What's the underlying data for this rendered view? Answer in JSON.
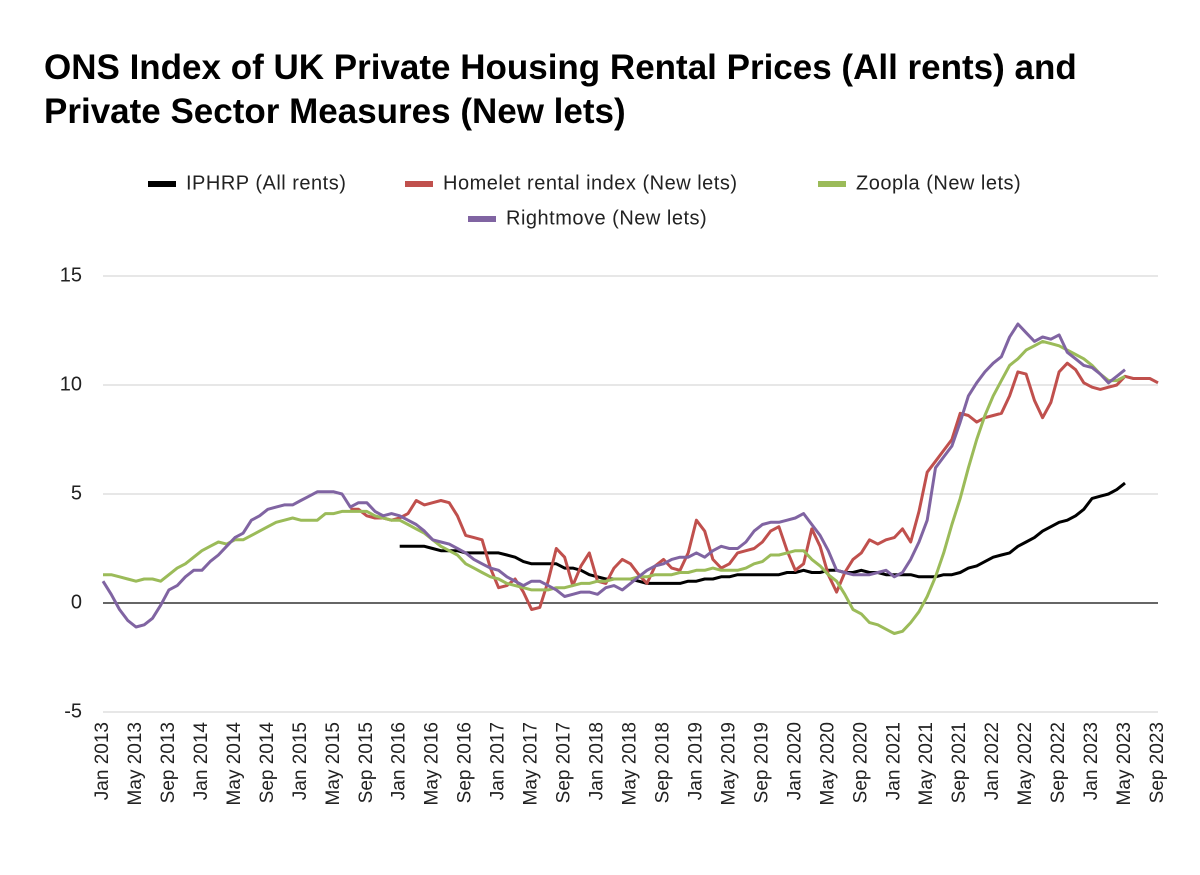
{
  "chart_data": {
    "type": "line",
    "title": "ONS Index of UK Private Housing Rental Prices (All rents) and Private Sector Measures (New lets)",
    "categories": [
      "Jan 2013",
      null,
      null,
      null,
      "May 2013",
      null,
      null,
      null,
      "Sep 2013",
      null,
      null,
      null,
      "Jan 2014",
      null,
      null,
      null,
      "May 2014",
      null,
      null,
      null,
      "Sep 2014",
      null,
      null,
      null,
      "Jan 2015",
      null,
      null,
      null,
      "May 2015",
      null,
      null,
      null,
      "Sep 2015",
      null,
      null,
      null,
      "Jan 2016",
      null,
      null,
      null,
      "May 2016",
      null,
      null,
      null,
      "Sep 2016",
      null,
      null,
      null,
      "Jan 2017",
      null,
      null,
      null,
      "May 2017",
      null,
      null,
      null,
      "Sep 2017",
      null,
      null,
      null,
      "Jan 2018",
      null,
      null,
      null,
      "May 2018",
      null,
      null,
      null,
      "Sep 2018",
      null,
      null,
      null,
      "Jan 2019",
      null,
      null,
      null,
      "May 2019",
      null,
      null,
      null,
      "Sep 2019",
      null,
      null,
      null,
      "Jan 2020",
      null,
      null,
      null,
      "May 2020",
      null,
      null,
      null,
      "Sep 2020",
      null,
      null,
      null,
      "Jan 2021",
      null,
      null,
      null,
      "May 2021",
      null,
      null,
      null,
      "Sep 2021",
      null,
      null,
      null,
      "Jan 2022",
      null,
      null,
      null,
      "May 2022",
      null,
      null,
      null,
      "Sep 2022",
      null,
      null,
      null,
      "Jan 2023",
      null,
      null,
      null,
      "May 2023",
      null,
      null,
      null,
      "Sep 2023"
    ],
    "series": [
      {
        "name": "IPHRP (All rents)",
        "color": "#000000",
        "values": [
          null,
          null,
          null,
          null,
          null,
          null,
          null,
          null,
          null,
          null,
          null,
          null,
          null,
          null,
          null,
          null,
          null,
          null,
          null,
          null,
          null,
          null,
          null,
          null,
          null,
          null,
          null,
          null,
          null,
          null,
          null,
          null,
          null,
          null,
          null,
          null,
          2.6,
          2.6,
          2.6,
          2.6,
          2.5,
          2.4,
          2.4,
          2.4,
          2.3,
          2.3,
          2.3,
          2.3,
          2.3,
          2.2,
          2.1,
          1.9,
          1.8,
          1.8,
          1.8,
          1.8,
          1.6,
          1.6,
          1.5,
          1.3,
          1.2,
          1.1,
          1.1,
          1.1,
          1.1,
          1.0,
          0.9,
          0.9,
          0.9,
          0.9,
          0.9,
          1.0,
          1.0,
          1.1,
          1.1,
          1.2,
          1.2,
          1.3,
          1.3,
          1.3,
          1.3,
          1.3,
          1.3,
          1.4,
          1.4,
          1.5,
          1.4,
          1.4,
          1.5,
          1.5,
          1.4,
          1.4,
          1.5,
          1.4,
          1.4,
          1.3,
          1.3,
          1.3,
          1.3,
          1.2,
          1.2,
          1.2,
          1.3,
          1.3,
          1.4,
          1.6,
          1.7,
          1.9,
          2.1,
          2.2,
          2.3,
          2.6,
          2.8,
          3.0,
          3.3,
          3.5,
          3.7,
          3.8,
          4.0,
          4.3,
          4.8,
          4.9,
          5.0,
          5.2,
          5.5,
          null,
          null,
          null,
          null
        ]
      },
      {
        "name": "Homelet rental index (New lets)",
        "color": "#c0504d",
        "values": [
          null,
          null,
          null,
          null,
          null,
          null,
          null,
          null,
          null,
          null,
          null,
          null,
          null,
          null,
          null,
          null,
          null,
          null,
          null,
          null,
          null,
          null,
          null,
          null,
          null,
          null,
          null,
          null,
          null,
          null,
          4.3,
          4.3,
          4.0,
          3.9,
          3.9,
          3.8,
          3.9,
          4.1,
          4.7,
          4.5,
          4.6,
          4.7,
          4.6,
          4.0,
          3.1,
          3.0,
          2.9,
          1.6,
          0.7,
          0.8,
          1.1,
          0.5,
          -0.3,
          -0.2,
          1.0,
          2.5,
          2.1,
          0.8,
          1.7,
          2.3,
          1.0,
          0.9,
          1.6,
          2.0,
          1.8,
          1.3,
          0.9,
          1.7,
          2.0,
          1.6,
          1.5,
          2.3,
          3.8,
          3.3,
          2.0,
          1.6,
          1.8,
          2.3,
          2.4,
          2.5,
          2.8,
          3.3,
          3.5,
          2.4,
          1.5,
          1.8,
          3.4,
          2.6,
          1.3,
          0.5,
          1.4,
          2.0,
          2.3,
          2.9,
          2.7,
          2.9,
          3.0,
          3.4,
          2.8,
          4.2,
          6.0,
          6.5,
          7.0,
          7.5,
          8.7,
          8.6,
          8.3,
          8.5,
          8.6,
          8.7,
          9.5,
          10.6,
          10.5,
          9.3,
          8.5,
          9.2,
          10.6,
          11.0,
          10.7,
          10.1,
          9.9,
          9.8,
          9.9,
          10.0,
          10.4,
          10.3,
          10.3,
          10.3,
          10.1
        ]
      },
      {
        "name": "Zoopla (New lets)",
        "color": "#9bbb59",
        "values": [
          1.3,
          1.3,
          1.2,
          1.1,
          1.0,
          1.1,
          1.1,
          1.0,
          1.3,
          1.6,
          1.8,
          2.1,
          2.4,
          2.6,
          2.8,
          2.7,
          2.9,
          2.9,
          3.1,
          3.3,
          3.5,
          3.7,
          3.8,
          3.9,
          3.8,
          3.8,
          3.8,
          4.1,
          4.1,
          4.2,
          4.2,
          4.2,
          4.2,
          4.0,
          3.9,
          3.8,
          3.8,
          3.6,
          3.4,
          3.2,
          2.9,
          2.6,
          2.4,
          2.2,
          1.8,
          1.6,
          1.4,
          1.2,
          1.1,
          0.9,
          0.8,
          0.7,
          0.6,
          0.6,
          0.6,
          0.7,
          0.7,
          0.8,
          0.9,
          0.9,
          1.0,
          1.0,
          1.1,
          1.1,
          1.1,
          1.2,
          1.2,
          1.3,
          1.3,
          1.3,
          1.4,
          1.4,
          1.5,
          1.5,
          1.6,
          1.5,
          1.5,
          1.5,
          1.6,
          1.8,
          1.9,
          2.2,
          2.2,
          2.3,
          2.4,
          2.4,
          2.0,
          1.7,
          1.3,
          1.0,
          0.4,
          -0.3,
          -0.5,
          -0.9,
          -1.0,
          -1.2,
          -1.4,
          -1.3,
          -0.9,
          -0.4,
          0.3,
          1.2,
          2.3,
          3.6,
          4.8,
          6.2,
          7.5,
          8.6,
          9.5,
          10.2,
          10.9,
          11.2,
          11.6,
          11.8,
          12.0,
          11.9,
          11.8,
          11.6,
          11.4,
          11.2,
          10.9,
          10.5,
          10.2,
          10.2,
          10.4,
          null,
          null,
          null,
          null
        ]
      },
      {
        "name": "Rightmove (New lets)",
        "color": "#8064a2",
        "values": [
          1.0,
          0.4,
          -0.3,
          -0.8,
          -1.1,
          -1.0,
          -0.7,
          -0.1,
          0.6,
          0.8,
          1.2,
          1.5,
          1.5,
          1.9,
          2.2,
          2.6,
          3.0,
          3.2,
          3.8,
          4.0,
          4.3,
          4.4,
          4.5,
          4.5,
          4.7,
          4.9,
          5.1,
          5.1,
          5.1,
          5.0,
          4.4,
          4.6,
          4.6,
          4.2,
          4.0,
          4.1,
          4.0,
          3.8,
          3.6,
          3.3,
          2.9,
          2.8,
          2.7,
          2.5,
          2.3,
          2.0,
          1.8,
          1.6,
          1.5,
          1.2,
          1.0,
          0.8,
          1.0,
          1.0,
          0.8,
          0.6,
          0.3,
          0.4,
          0.5,
          0.5,
          0.4,
          0.7,
          0.8,
          0.6,
          0.9,
          1.2,
          1.5,
          1.7,
          1.8,
          2.0,
          2.1,
          2.1,
          2.3,
          2.1,
          2.4,
          2.6,
          2.5,
          2.5,
          2.8,
          3.3,
          3.6,
          3.7,
          3.7,
          3.8,
          3.9,
          4.1,
          3.6,
          3.1,
          2.4,
          1.5,
          1.4,
          1.3,
          1.3,
          1.3,
          1.4,
          1.5,
          1.2,
          1.4,
          2.0,
          2.8,
          3.8,
          6.2,
          6.7,
          7.2,
          8.3,
          9.5,
          10.1,
          10.6,
          11.0,
          11.3,
          12.2,
          12.8,
          12.4,
          12.0,
          12.2,
          12.1,
          12.3,
          11.5,
          11.2,
          10.9,
          10.8,
          10.5,
          10.1,
          10.4,
          10.7,
          null,
          null,
          null,
          null
        ]
      }
    ],
    "ylim": [
      -5,
      15
    ],
    "yticks": [
      -5,
      0,
      5,
      10,
      15
    ],
    "grid": true
  }
}
